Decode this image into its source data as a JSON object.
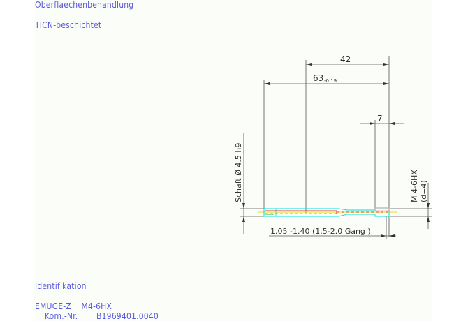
{
  "header": {
    "surface_label": "Oberflaechenbehandlung",
    "coating": "TICN-beschichtet"
  },
  "dimensions": {
    "length_42": "42",
    "total_length": "63",
    "total_tolerance": "-0.19",
    "length_7": "7",
    "shank": "Schaft  Ø 4.5  h9",
    "thread": "M  4-6HX",
    "thread_d": "(d=4)",
    "chamfer": "1.05 -1.40 (1.5-2.0 Gang   )"
  },
  "identification": {
    "label": "Identifikation",
    "product": "EMUGE-Z    M4-6HX",
    "kom_label": "Kom.-Nr.",
    "kom_value": "B1969401.0040"
  },
  "colors": {
    "text": "#5a5adc",
    "tool_outline": "#00e0e0",
    "centerline": "#e8e000",
    "hidden": "#e00000"
  }
}
